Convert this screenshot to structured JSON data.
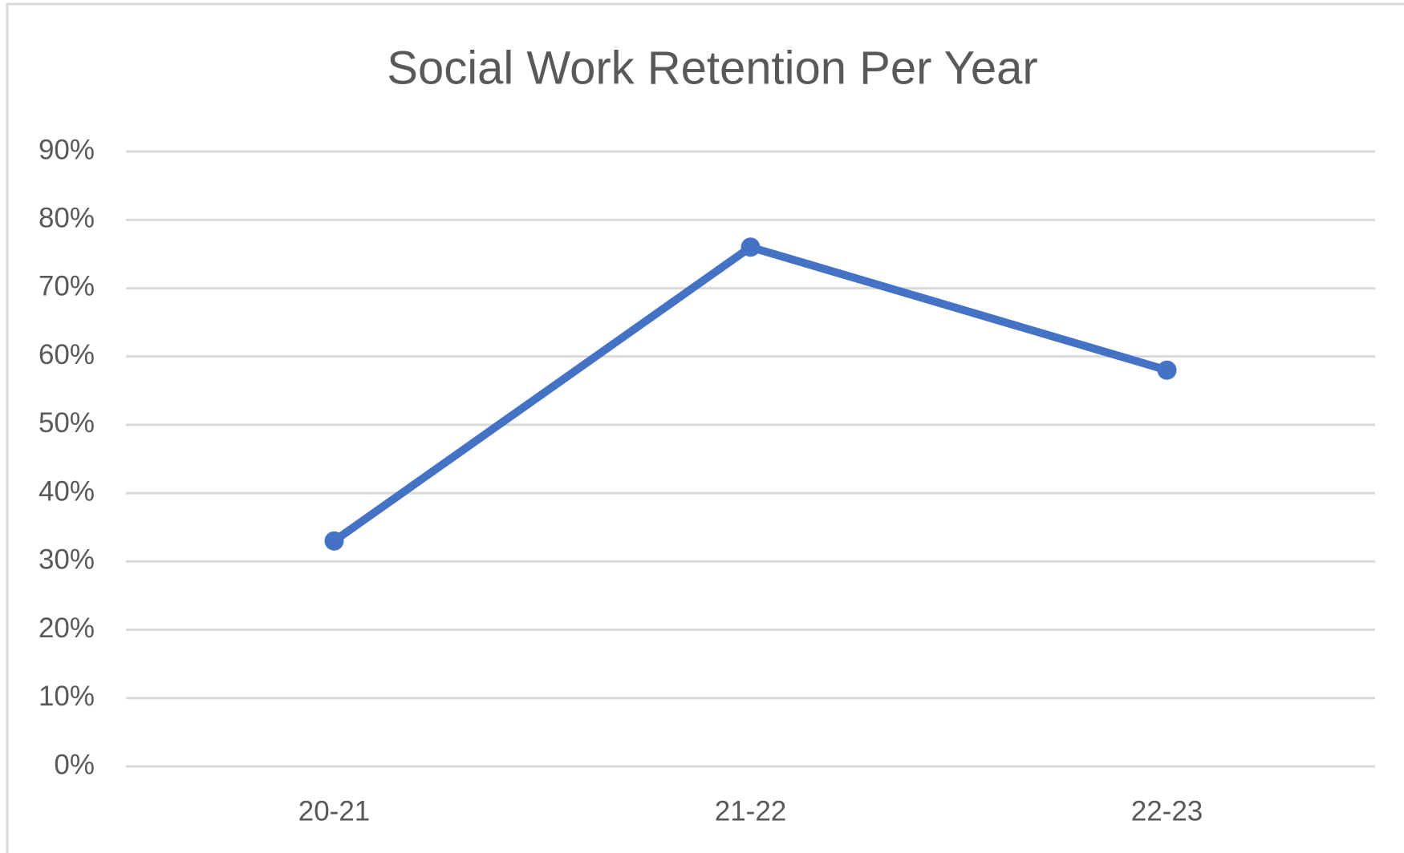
{
  "chart_data": {
    "type": "line",
    "title": "Social Work Retention Per Year",
    "categories": [
      "20-21",
      "21-22",
      "22-23"
    ],
    "values": [
      33,
      76,
      58
    ],
    "color": "#4472c4",
    "ylim": [
      0,
      90
    ],
    "yticks": [
      {
        "value": 0,
        "label": "0%"
      },
      {
        "value": 10,
        "label": "10%"
      },
      {
        "value": 20,
        "label": "20%"
      },
      {
        "value": 30,
        "label": "30%"
      },
      {
        "value": 40,
        "label": "40%"
      },
      {
        "value": 50,
        "label": "50%"
      },
      {
        "value": 60,
        "label": "60%"
      },
      {
        "value": 70,
        "label": "70%"
      },
      {
        "value": 80,
        "label": "80%"
      },
      {
        "value": 90,
        "label": "90%"
      }
    ],
    "grid": true
  }
}
